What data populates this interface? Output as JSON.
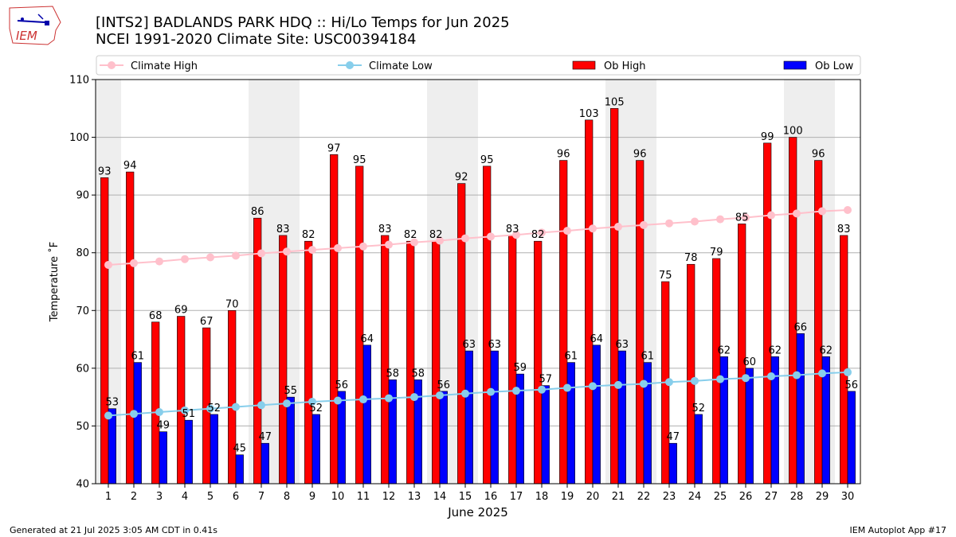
{
  "header": {
    "title_line1": "[INTS2] BADLANDS PARK HDQ :: Hi/Lo Temps for Jun 2025",
    "title_line2": "NCEI 1991-2020 Climate Site: USC00394184"
  },
  "logo": {
    "text": "IEM",
    "icon": "iowa-state-map-logo"
  },
  "footer": {
    "generated": "Generated at 21 Jul 2025 3:05 AM CDT in 0.41s",
    "app": "IEM Autoplot App #17"
  },
  "chart_data": {
    "type": "bar",
    "xlabel": "June 2025",
    "ylabel": "Temperature ˚F",
    "ylim": [
      40,
      110
    ],
    "yticks": [
      40,
      50,
      60,
      70,
      80,
      90,
      100,
      110
    ],
    "grid": true,
    "legend_position": "top",
    "categories": [
      "1",
      "2",
      "3",
      "4",
      "5",
      "6",
      "7",
      "8",
      "9",
      "10",
      "11",
      "12",
      "13",
      "14",
      "15",
      "16",
      "17",
      "18",
      "19",
      "20",
      "21",
      "22",
      "23",
      "24",
      "25",
      "26",
      "27",
      "28",
      "29",
      "30"
    ],
    "weekend_shading": [
      1,
      7,
      8,
      14,
      15,
      21,
      22,
      28,
      29
    ],
    "series": [
      {
        "name": "Climate High",
        "kind": "line",
        "color": "#ffc0cb",
        "values": [
          77.9,
          78.2,
          78.5,
          78.9,
          79.2,
          79.5,
          79.9,
          80.2,
          80.5,
          80.8,
          81.1,
          81.4,
          81.8,
          82.1,
          82.5,
          82.8,
          83.1,
          83.5,
          83.8,
          84.2,
          84.5,
          84.8,
          85.1,
          85.4,
          85.8,
          86.1,
          86.5,
          86.8,
          87.2,
          87.4
        ]
      },
      {
        "name": "Climate Low",
        "kind": "line",
        "color": "#87ceeb",
        "values": [
          51.8,
          52.1,
          52.4,
          52.7,
          53.0,
          53.3,
          53.6,
          53.9,
          54.2,
          54.4,
          54.6,
          54.8,
          55.0,
          55.3,
          55.6,
          55.9,
          56.1,
          56.3,
          56.6,
          56.9,
          57.1,
          57.3,
          57.6,
          57.8,
          58.1,
          58.3,
          58.6,
          58.8,
          59.1,
          59.3
        ]
      },
      {
        "name": "Ob High",
        "kind": "bar",
        "color": "#ff0000",
        "values": [
          93,
          94,
          68,
          69,
          67,
          70,
          86,
          83,
          82,
          97,
          95,
          83,
          82,
          82,
          92,
          95,
          83,
          82,
          96,
          103,
          105,
          96,
          75,
          78,
          79,
          85,
          99,
          100,
          96,
          83
        ]
      },
      {
        "name": "Ob Low",
        "kind": "bar",
        "color": "#0000ff",
        "values": [
          53,
          61,
          49,
          51,
          52,
          45,
          47,
          55,
          52,
          56,
          64,
          58,
          58,
          56,
          63,
          63,
          59,
          57,
          61,
          64,
          63,
          61,
          47,
          52,
          62,
          60,
          62,
          66,
          62,
          56
        ]
      }
    ]
  }
}
